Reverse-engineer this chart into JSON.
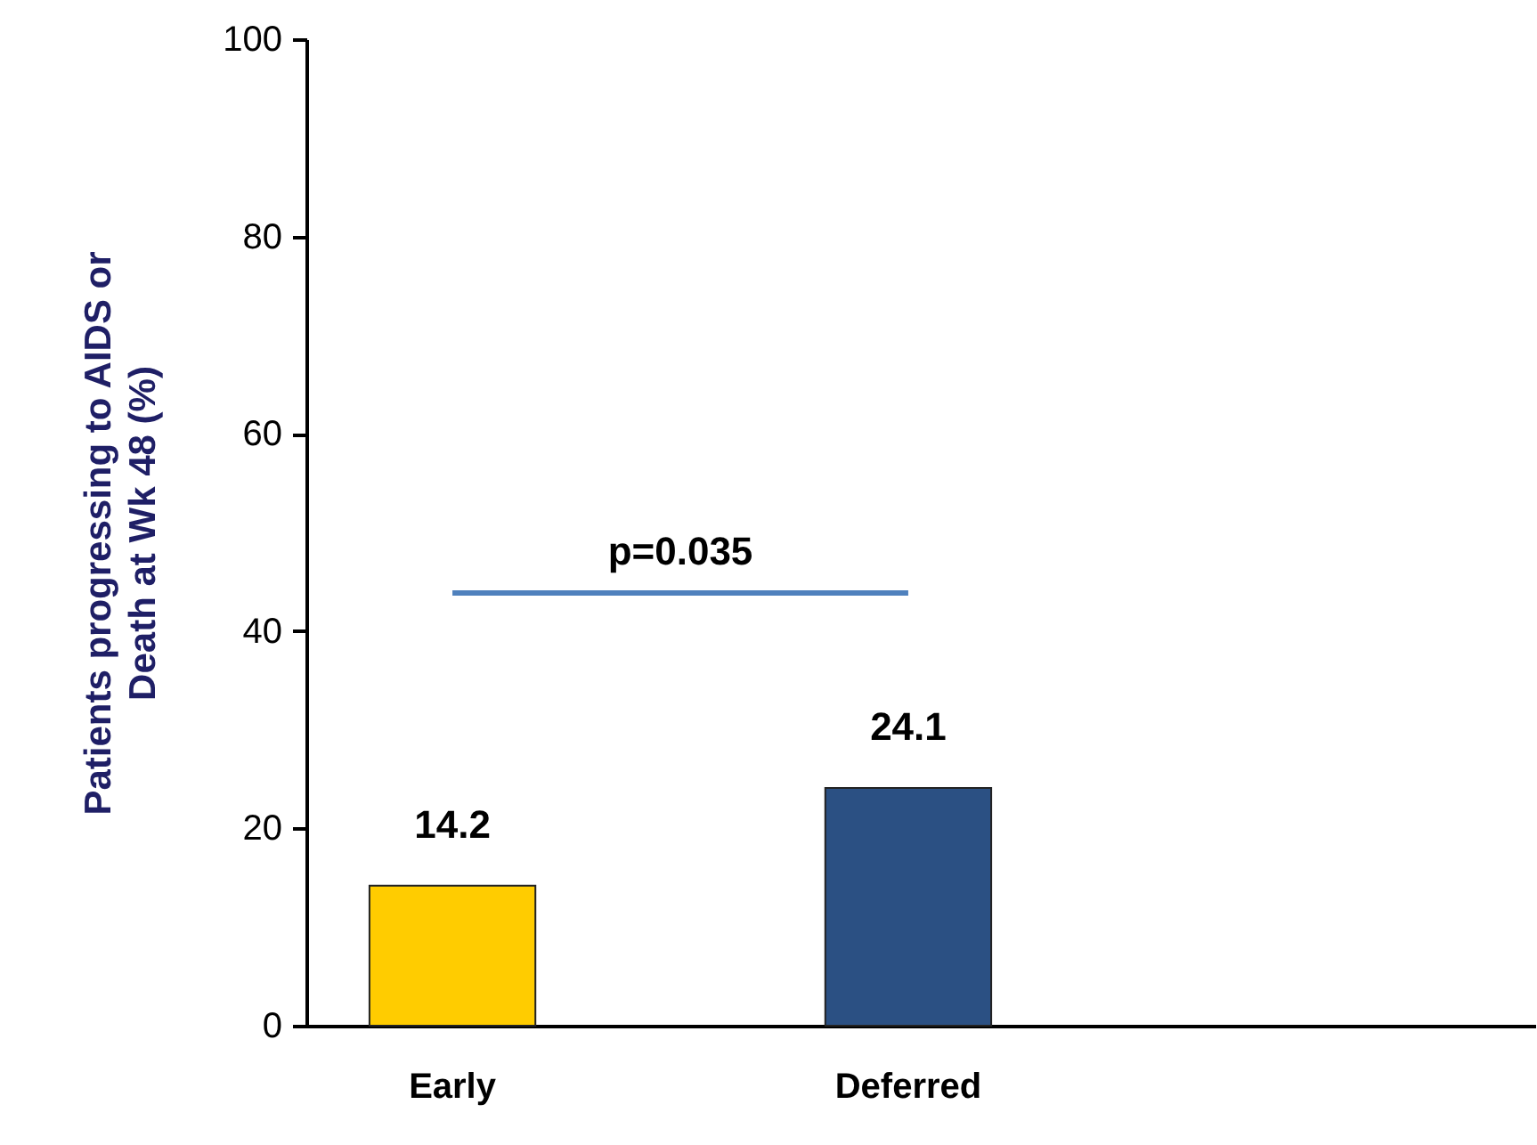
{
  "chart_data": {
    "type": "bar",
    "ylabel": "Patients progressing to AIDS or Death at Wk 48 (%)",
    "categories": [
      "Early",
      "Deferred"
    ],
    "values": [
      14.2,
      24.1
    ],
    "colors": [
      "#ffcc00",
      "#2b5083"
    ],
    "ylim": [
      0,
      100
    ],
    "yticks": [
      0,
      20,
      40,
      60,
      80,
      100
    ],
    "data_labels": true,
    "grid": false,
    "annotations": [
      "p=0.035"
    ]
  }
}
